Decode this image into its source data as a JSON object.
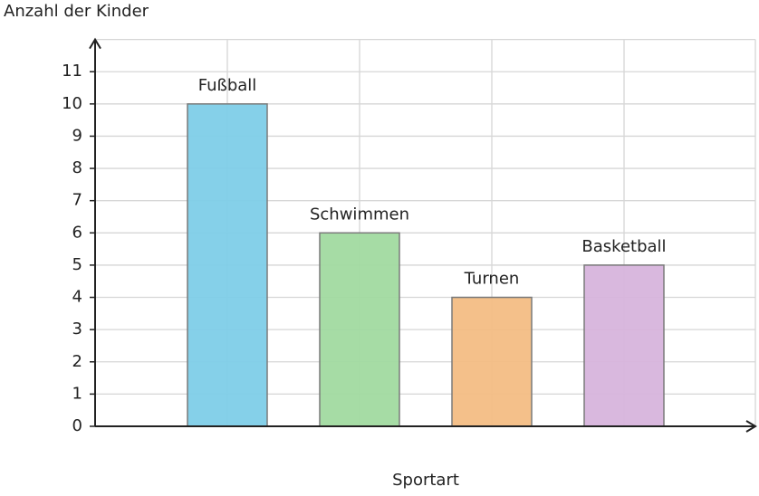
{
  "chart_data": {
    "type": "bar",
    "y_label": "Anzahl der Kinder",
    "x_label": "Sportart",
    "categories": [
      "Fußball",
      "Schwimmen",
      "Turnen",
      "Basketball"
    ],
    "series": [
      {
        "values": [
          10,
          6,
          4,
          5
        ],
        "colors": [
          "#7ecde8",
          "#a1daa0",
          "#f3bd84",
          "#d7b4dc"
        ]
      }
    ],
    "ylim": [
      0,
      12
    ],
    "yticks": [
      0,
      1,
      2,
      3,
      4,
      5,
      6,
      7,
      8,
      9,
      10,
      11
    ],
    "grid": true
  }
}
